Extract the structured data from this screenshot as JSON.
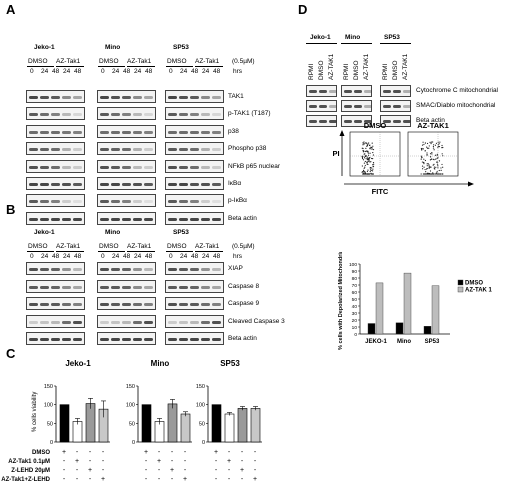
{
  "panels": {
    "a": "A",
    "b": "B",
    "c": "C",
    "d": "D"
  },
  "panelA": {
    "cell_lines": [
      "Jeko-1",
      "Mino",
      "SP53"
    ],
    "treatments": [
      "DMSO",
      "AZ-Tak1"
    ],
    "concentration": "(0.5µM)",
    "timepoints": [
      "0",
      "24",
      "48",
      "24",
      "48"
    ],
    "hrs": "hrs",
    "rows": [
      "TAK1",
      "p-TAK1 (T187)",
      "p38",
      "Phospho p38",
      "NFkB p65 nuclear",
      "IκBα",
      "p-IκBα",
      "Beta actin"
    ]
  },
  "panelB": {
    "cell_lines": [
      "Jeko-1",
      "Mino",
      "SP53"
    ],
    "treatments": [
      "DMSO",
      "AZ-Tak1"
    ],
    "concentration": "(0.5µM)",
    "timepoints": [
      "0",
      "24",
      "48",
      "24",
      "48"
    ],
    "hrs": "hrs",
    "rows": [
      "XIAP",
      "Caspase 8",
      "Caspase 9",
      "Cleaved Caspase  3",
      "Beta actin"
    ]
  },
  "panelC": {
    "ylabel": "% cells viability",
    "plus": "+",
    "minus": "-",
    "conditions": [
      "DMSO",
      "AZ-Tak1 0.1µM",
      "Z-LEHD 20µM",
      "AZ-Tak1+Z-LEHD"
    ],
    "colors": [
      "#000000",
      "#ffffff",
      "#9a9a9a",
      "#c8c8c8"
    ]
  },
  "panelD": {
    "cell_lines": [
      "Jeko-1",
      "Mino",
      "SP53"
    ],
    "lanes": [
      "RPMI",
      "DMSO",
      "AZ-TAK1"
    ],
    "rows": [
      "Cytochrome  C mitochondrial",
      "SMAC/Diablo mitochondrial",
      "Beta actin"
    ],
    "flow_labels": [
      "DMSO",
      "AZ-TAK1"
    ],
    "flow_y": "PI",
    "flow_x": "FITC",
    "bar_ylabel": "% cells with Depolarized Mitochondria",
    "legend": [
      "DMSO",
      "AZ-TAK 1"
    ]
  },
  "chart_data": [
    {
      "type": "bar",
      "title": "Jeko-1",
      "categories": [
        "DMSO",
        "AZ-Tak1 0.1µM",
        "Z-LEHD 20µM",
        "AZ-Tak1+Z-LEHD"
      ],
      "values": [
        100,
        55,
        103,
        88
      ],
      "errors": [
        0,
        8,
        14,
        22
      ],
      "ylim": [
        0,
        150
      ],
      "yticks": [
        0,
        50,
        100,
        150
      ],
      "ylabel": "% cells viability"
    },
    {
      "type": "bar",
      "title": "Mino",
      "categories": [
        "DMSO",
        "AZ-Tak1 0.1µM",
        "Z-LEHD 20µM",
        "AZ-Tak1+Z-LEHD"
      ],
      "values": [
        100,
        55,
        102,
        75
      ],
      "errors": [
        0,
        8,
        12,
        6
      ],
      "ylim": [
        0,
        150
      ],
      "yticks": [
        0,
        50,
        100,
        150
      ]
    },
    {
      "type": "bar",
      "title": "SP53",
      "categories": [
        "DMSO",
        "AZ-Tak1 0.1µM",
        "Z-LEHD 20µM",
        "AZ-Tak1+Z-LEHD"
      ],
      "values": [
        100,
        75,
        90,
        90
      ],
      "errors": [
        0,
        4,
        5,
        5
      ],
      "ylim": [
        0,
        150
      ],
      "yticks": [
        0,
        50,
        100,
        150
      ]
    },
    {
      "type": "bar",
      "categories": [
        "JEKO-1",
        "Mino",
        "SP53"
      ],
      "series": [
        {
          "name": "DMSO",
          "values": [
            15,
            16,
            11
          ]
        },
        {
          "name": "AZ-TAK 1",
          "values": [
            73,
            87,
            69
          ]
        }
      ],
      "ylim": [
        0,
        100
      ],
      "yticks": [
        0,
        10,
        20,
        30,
        40,
        50,
        60,
        70,
        80,
        90,
        100
      ],
      "ylabel": "% cells with Depolarized Mitochondria",
      "legend": "right"
    }
  ]
}
